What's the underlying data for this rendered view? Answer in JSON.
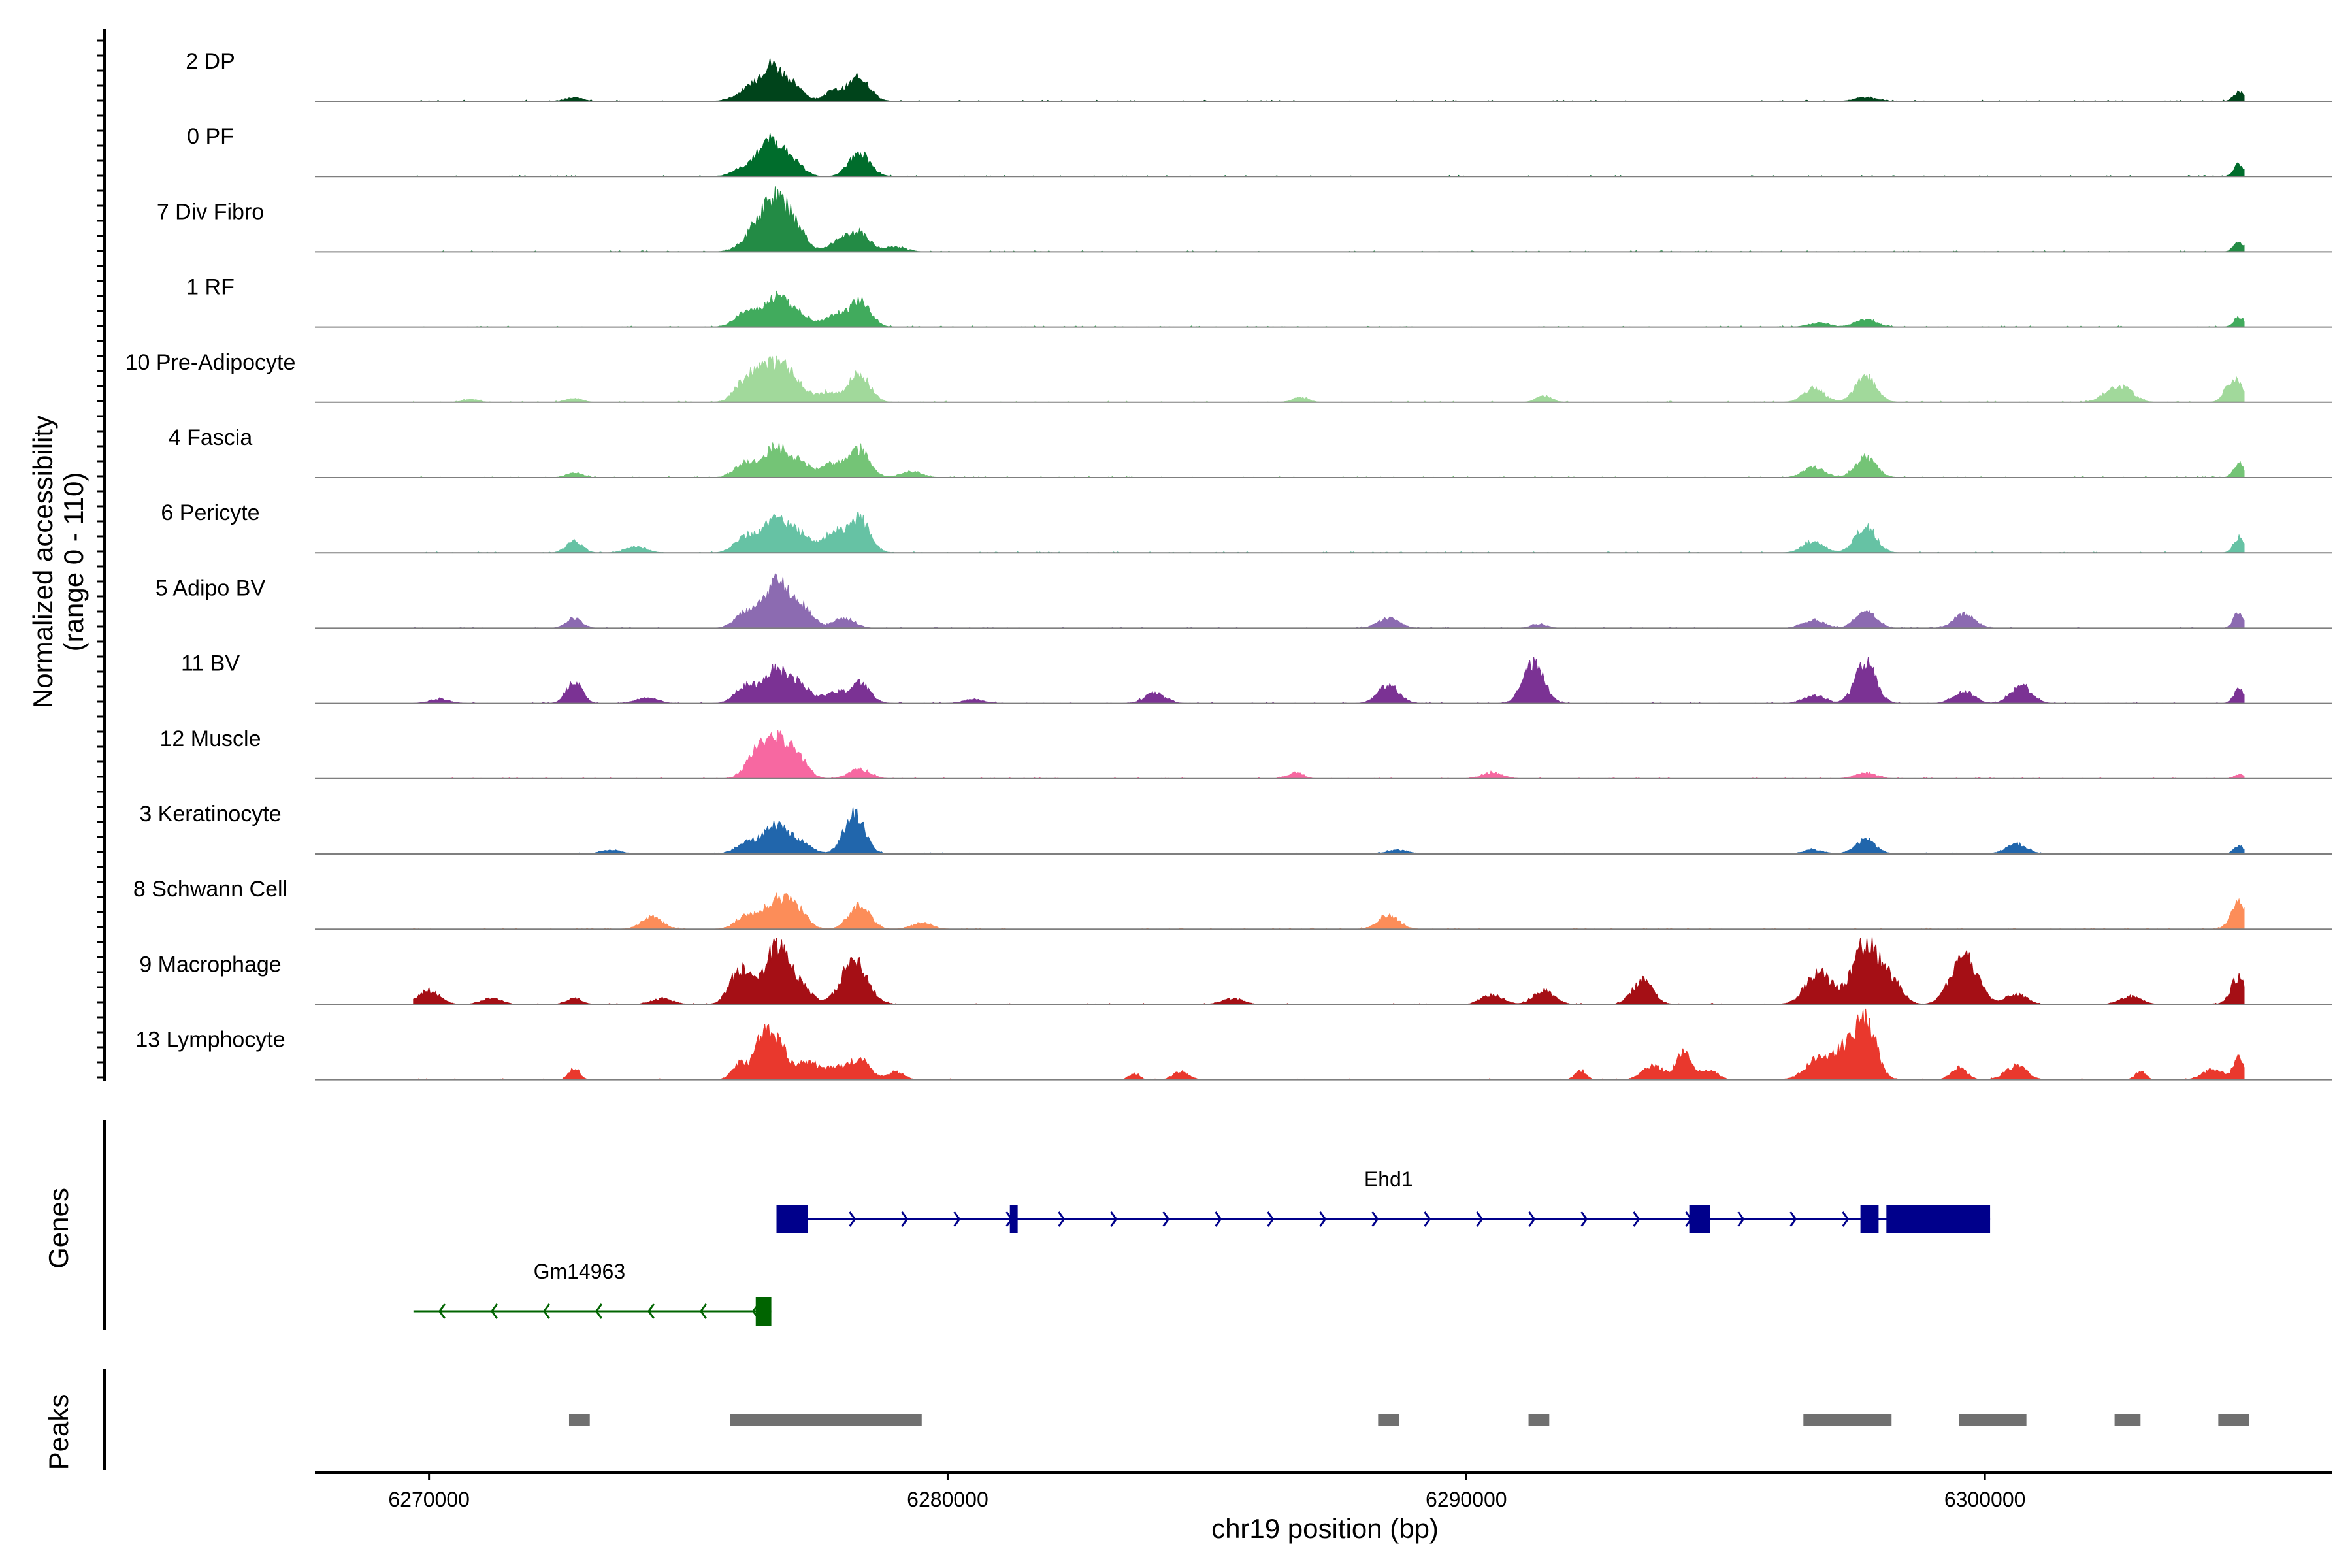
{
  "chart_data": {
    "type": "area",
    "title": "",
    "ylabel_line1": "Normalized accessibility",
    "ylabel_line2": "(range 0 - 110)",
    "xlabel": "chr19 position (bp)",
    "chromosome": "chr19",
    "y_range": [
      0,
      110
    ],
    "x_range": [
      6267800,
      6306700
    ],
    "x_ticks": [
      6270000,
      6280000,
      6290000,
      6300000
    ],
    "x_tick_labels": [
      "6270000",
      "6280000",
      "6290000",
      "6300000"
    ],
    "track_start": 6269700,
    "track_end": 6305000,
    "series": [
      {
        "name": "2 DP",
        "color": "#00441b",
        "peaks": [
          [
            6272800,
            4,
            150
          ],
          [
            6276200,
            12,
            250
          ],
          [
            6276600,
            32,
            200
          ],
          [
            6277000,
            16,
            200
          ],
          [
            6277800,
            10,
            180
          ],
          [
            6278300,
            24,
            200
          ],
          [
            6297700,
            4,
            200
          ],
          [
            6304900,
            10,
            100
          ]
        ]
      },
      {
        "name": "0 PF",
        "color": "#006d2c",
        "peaks": [
          [
            6276200,
            12,
            250
          ],
          [
            6276600,
            32,
            200
          ],
          [
            6277000,
            16,
            200
          ],
          [
            6278300,
            24,
            200
          ],
          [
            6304900,
            12,
            100
          ]
        ]
      },
      {
        "name": "7 Div Fibro",
        "color": "#238b45",
        "peaks": [
          [
            6276300,
            18,
            250
          ],
          [
            6276700,
            48,
            250
          ],
          [
            6277100,
            16,
            200
          ],
          [
            6277900,
            10,
            200
          ],
          [
            6278300,
            18,
            200
          ],
          [
            6279000,
            5,
            200
          ],
          [
            6304900,
            10,
            100
          ]
        ]
      },
      {
        "name": "1 RF",
        "color": "#41ab5d",
        "peaks": [
          [
            6276100,
            14,
            200
          ],
          [
            6276700,
            30,
            250
          ],
          [
            6277200,
            10,
            200
          ],
          [
            6277800,
            12,
            180
          ],
          [
            6278300,
            26,
            200
          ],
          [
            6296800,
            4,
            200
          ],
          [
            6297700,
            8,
            200
          ],
          [
            6304900,
            10,
            100
          ]
        ]
      },
      {
        "name": "10 Pre-Adipocyte",
        "color": "#a1d99b",
        "peaks": [
          [
            6270800,
            3,
            150
          ],
          [
            6272800,
            4,
            150
          ],
          [
            6276100,
            22,
            200
          ],
          [
            6276400,
            14,
            150
          ],
          [
            6276700,
            36,
            250
          ],
          [
            6277100,
            14,
            200
          ],
          [
            6277700,
            10,
            200
          ],
          [
            6278300,
            28,
            200
          ],
          [
            6286800,
            5,
            150
          ],
          [
            6291500,
            6,
            150
          ],
          [
            6296700,
            14,
            200
          ],
          [
            6297700,
            26,
            200
          ],
          [
            6302400,
            8,
            200
          ],
          [
            6302700,
            12,
            200
          ],
          [
            6304800,
            24,
            150
          ]
        ]
      },
      {
        "name": "4 Fascia",
        "color": "#74c476",
        "peaks": [
          [
            6272800,
            5,
            150
          ],
          [
            6276100,
            14,
            200
          ],
          [
            6276700,
            30,
            250
          ],
          [
            6277200,
            12,
            200
          ],
          [
            6277800,
            14,
            200
          ],
          [
            6278300,
            28,
            200
          ],
          [
            6279300,
            6,
            200
          ],
          [
            6296700,
            10,
            200
          ],
          [
            6297700,
            20,
            200
          ],
          [
            6304900,
            14,
            100
          ]
        ]
      },
      {
        "name": "6 Pericyte",
        "color": "#66c2a4",
        "peaks": [
          [
            6272800,
            12,
            150
          ],
          [
            6274000,
            6,
            200
          ],
          [
            6276100,
            16,
            200
          ],
          [
            6276700,
            36,
            250
          ],
          [
            6277200,
            14,
            200
          ],
          [
            6277800,
            20,
            200
          ],
          [
            6278300,
            34,
            200
          ],
          [
            6296700,
            12,
            200
          ],
          [
            6297700,
            26,
            200
          ],
          [
            6304900,
            16,
            100
          ]
        ]
      },
      {
        "name": "5 Adipo BV",
        "color": "#8c6bb1",
        "peaks": [
          [
            6272800,
            10,
            150
          ],
          [
            6276100,
            14,
            200
          ],
          [
            6276700,
            46,
            250
          ],
          [
            6277200,
            18,
            200
          ],
          [
            6278000,
            10,
            200
          ],
          [
            6288500,
            10,
            200
          ],
          [
            6291400,
            4,
            150
          ],
          [
            6296700,
            8,
            200
          ],
          [
            6297700,
            16,
            200
          ],
          [
            6299600,
            14,
            200
          ],
          [
            6304900,
            16,
            100
          ]
        ]
      },
      {
        "name": "11 BV",
        "color": "#7b3294",
        "peaks": [
          [
            6270200,
            4,
            200
          ],
          [
            6272800,
            22,
            150
          ],
          [
            6274200,
            6,
            200
          ],
          [
            6276100,
            16,
            200
          ],
          [
            6276700,
            34,
            250
          ],
          [
            6277200,
            14,
            200
          ],
          [
            6277800,
            10,
            200
          ],
          [
            6278300,
            20,
            200
          ],
          [
            6280500,
            4,
            200
          ],
          [
            6284000,
            10,
            200
          ],
          [
            6288500,
            18,
            200
          ],
          [
            6291300,
            40,
            200
          ],
          [
            6296700,
            8,
            200
          ],
          [
            6297700,
            40,
            200
          ],
          [
            6299600,
            12,
            200
          ],
          [
            6300700,
            18,
            200
          ],
          [
            6304900,
            14,
            100
          ]
        ]
      },
      {
        "name": "12 Muscle",
        "color": "#f768a1",
        "peaks": [
          [
            6276300,
            20,
            200
          ],
          [
            6276700,
            36,
            250
          ],
          [
            6277100,
            18,
            200
          ],
          [
            6278300,
            10,
            200
          ],
          [
            6286700,
            6,
            150
          ],
          [
            6290500,
            6,
            200
          ],
          [
            6297700,
            6,
            200
          ],
          [
            6304900,
            4,
            100
          ]
        ]
      },
      {
        "name": "3 Keratinocyte",
        "color": "#2166ac",
        "peaks": [
          [
            6273500,
            4,
            200
          ],
          [
            6276100,
            10,
            200
          ],
          [
            6276700,
            30,
            250
          ],
          [
            6277200,
            8,
            200
          ],
          [
            6278200,
            40,
            200
          ],
          [
            6288700,
            4,
            200
          ],
          [
            6296700,
            4,
            200
          ],
          [
            6297700,
            14,
            200
          ],
          [
            6300600,
            10,
            200
          ],
          [
            6304900,
            8,
            100
          ]
        ]
      },
      {
        "name": "8 Schwann Cell",
        "color": "#fc8d59",
        "peaks": [
          [
            6274300,
            12,
            200
          ],
          [
            6276100,
            12,
            200
          ],
          [
            6276700,
            28,
            250
          ],
          [
            6277100,
            16,
            200
          ],
          [
            6278300,
            24,
            200
          ],
          [
            6279500,
            6,
            200
          ],
          [
            6288500,
            14,
            200
          ],
          [
            6304900,
            26,
            150
          ]
        ]
      },
      {
        "name": "9 Macrophage",
        "color": "#a50f15",
        "peaks": [
          [
            6270000,
            14,
            200
          ],
          [
            6271200,
            6,
            200
          ],
          [
            6272800,
            6,
            150
          ],
          [
            6274500,
            6,
            200
          ],
          [
            6276000,
            34,
            200
          ],
          [
            6276700,
            58,
            250
          ],
          [
            6277200,
            14,
            200
          ],
          [
            6278200,
            44,
            250
          ],
          [
            6285500,
            6,
            200
          ],
          [
            6290500,
            10,
            200
          ],
          [
            6291500,
            14,
            200
          ],
          [
            6293400,
            24,
            200
          ],
          [
            6296800,
            32,
            250
          ],
          [
            6297700,
            60,
            250
          ],
          [
            6298200,
            22,
            200
          ],
          [
            6299600,
            50,
            250
          ],
          [
            6300600,
            10,
            200
          ],
          [
            6302800,
            8,
            200
          ],
          [
            6304900,
            28,
            150
          ]
        ]
      },
      {
        "name": "13 Lymphocyte",
        "color": "#e9382d",
        "peaks": [
          [
            6272800,
            12,
            100
          ],
          [
            6276000,
            16,
            150
          ],
          [
            6276400,
            30,
            150
          ],
          [
            6276700,
            38,
            200
          ],
          [
            6277300,
            16,
            200
          ],
          [
            6277800,
            12,
            200
          ],
          [
            6278300,
            20,
            200
          ],
          [
            6279000,
            8,
            150
          ],
          [
            6283600,
            6,
            100
          ],
          [
            6284500,
            8,
            150
          ],
          [
            6292200,
            10,
            100
          ],
          [
            6293600,
            14,
            200
          ],
          [
            6294200,
            26,
            150
          ],
          [
            6294700,
            10,
            150
          ],
          [
            6296800,
            22,
            250
          ],
          [
            6297300,
            26,
            200
          ],
          [
            6297700,
            60,
            200
          ],
          [
            6299500,
            12,
            150
          ],
          [
            6300600,
            14,
            200
          ],
          [
            6303000,
            8,
            100
          ],
          [
            6304400,
            10,
            200
          ],
          [
            6304900,
            22,
            100
          ]
        ]
      }
    ],
    "genes_label": "Genes",
    "genes": [
      {
        "name": "Ehd1",
        "strand": "+",
        "color": "#00008b",
        "start": 6276700,
        "end": 6300100,
        "row": 0,
        "exons": [
          [
            6276700,
            6277300
          ],
          [
            6281200,
            6281350
          ],
          [
            6294300,
            6294700
          ],
          [
            6297600,
            6297950
          ],
          [
            6298100,
            6300100
          ]
        ]
      },
      {
        "name": "Gm14963",
        "strand": "-",
        "color": "#006400",
        "start": 6269700,
        "end": 6276600,
        "row": 1,
        "exons": [
          [
            6276300,
            6276600
          ]
        ]
      }
    ],
    "peaks_label": "Peaks",
    "peak_color": "#707070",
    "peak_regions": [
      [
        6272700,
        6273100
      ],
      [
        6275800,
        6279500
      ],
      [
        6288300,
        6288700
      ],
      [
        6291200,
        6291600
      ],
      [
        6296500,
        6298200
      ],
      [
        6299500,
        6300800
      ],
      [
        6302500,
        6303000
      ],
      [
        6304500,
        6305100
      ]
    ]
  }
}
